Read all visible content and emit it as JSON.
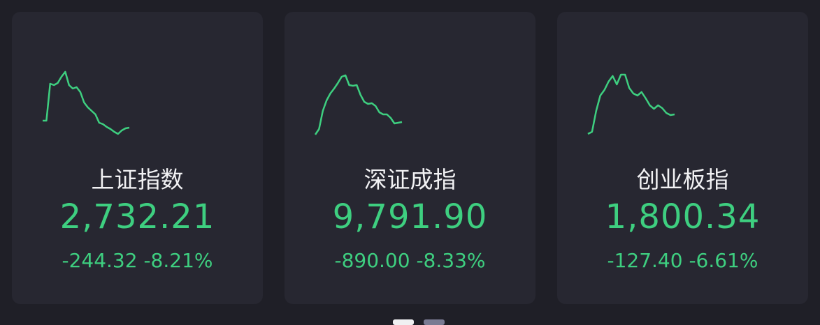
{
  "colors": {
    "up_down": "#3ecf80",
    "dot_active": "#f0f0f2",
    "dot_inactive": "#7a7b93"
  },
  "cards": [
    {
      "name": "上证指数",
      "value": "2,732.21",
      "change": "-244.32",
      "change_pct": "-8.21%",
      "sparkline": [
        52,
        52,
        105,
        103,
        106,
        115,
        122,
        103,
        98,
        100,
        93,
        78,
        71,
        66,
        61,
        49,
        47,
        43,
        40,
        36,
        33,
        38,
        41,
        42
      ]
    },
    {
      "name": "深证成指",
      "value": "9,791.90",
      "change": "-890.00",
      "change_pct": "-8.33%",
      "sparkline": [
        36,
        44,
        70,
        85,
        95,
        102,
        110,
        119,
        121,
        107,
        106,
        107,
        93,
        83,
        80,
        81,
        77,
        68,
        65,
        65,
        60,
        52,
        53,
        54
      ]
    },
    {
      "name": "创业板指",
      "value": "1,800.34",
      "change": "-127.40",
      "change_pct": "-6.61%",
      "sparkline": [
        37,
        40,
        70,
        92,
        100,
        112,
        120,
        108,
        122,
        122,
        103,
        95,
        92,
        97,
        88,
        78,
        73,
        78,
        74,
        67,
        64,
        65
      ]
    }
  ],
  "pager": {
    "pages": 2,
    "active": 0
  }
}
